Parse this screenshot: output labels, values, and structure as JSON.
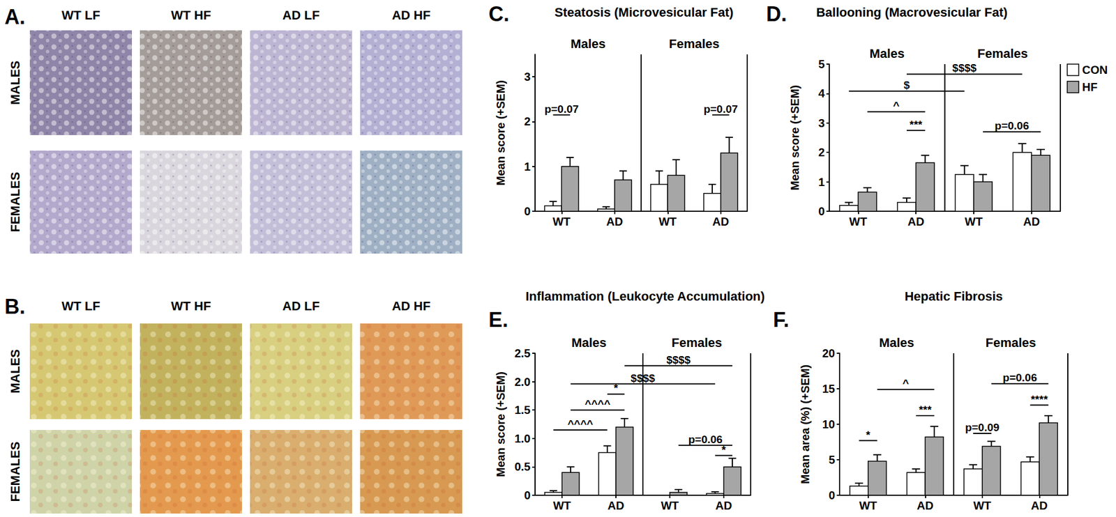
{
  "images": [
    {
      "panel": "A.",
      "columns": [
        "WT LF",
        "WT HF",
        "AD LF",
        "AD HF"
      ],
      "rows": [
        "MALES",
        "FEMALES"
      ]
    },
    {
      "panel": "B.",
      "columns": [
        "WT LF",
        "WT HF",
        "AD LF",
        "AD HF"
      ],
      "rows": [
        "MALES",
        "FEMALES"
      ]
    }
  ],
  "chart_data": [
    {
      "type": "bar",
      "panel": "C.",
      "title": "Steatosis (Microvesicular Fat)",
      "ylabel": "Mean score (+SEM)",
      "groups": [
        "Males",
        "Females"
      ],
      "categories": [
        "WT",
        "AD",
        "WT",
        "AD"
      ],
      "series": [
        {
          "name": "CON",
          "color": "#ffffff",
          "values": [
            0.12,
            0.05,
            0.6,
            0.4
          ],
          "errors": [
            0.1,
            0.05,
            0.3,
            0.2
          ]
        },
        {
          "name": "HF",
          "color": "#a6a6a6",
          "values": [
            1.0,
            0.7,
            0.8,
            1.3
          ],
          "errors": [
            0.2,
            0.2,
            0.35,
            0.35
          ]
        }
      ],
      "ylim": [
        0,
        3.5
      ],
      "yticks": [
        0,
        1,
        2,
        3
      ],
      "annotations": [
        {
          "label": "p=0.07",
          "from": [
            0,
            0
          ],
          "to": [
            0,
            1
          ],
          "y": 2.15
        },
        {
          "label": "p=0.07",
          "from": [
            3,
            0
          ],
          "to": [
            3,
            1
          ],
          "y": 2.15
        }
      ]
    },
    {
      "type": "bar",
      "panel": "D.",
      "title": "Ballooning (Macrovesicular Fat)",
      "ylabel": "Mean score (+SEM)",
      "groups": [
        "Males",
        "Females"
      ],
      "categories": [
        "WT",
        "AD",
        "WT",
        "AD"
      ],
      "series": [
        {
          "name": "CON",
          "color": "#ffffff",
          "values": [
            0.2,
            0.3,
            1.25,
            2.0
          ],
          "errors": [
            0.1,
            0.15,
            0.3,
            0.3
          ]
        },
        {
          "name": "HF",
          "color": "#a6a6a6",
          "values": [
            0.65,
            1.65,
            1.0,
            1.9
          ],
          "errors": [
            0.15,
            0.25,
            0.25,
            0.2
          ]
        }
      ],
      "ylim": [
        0,
        5
      ],
      "yticks": [
        0,
        1,
        2,
        3,
        4,
        5
      ],
      "legend": "right",
      "annotations": [
        {
          "label": "$$$$",
          "from": [
            1,
            0
          ],
          "to": [
            3,
            0
          ],
          "y": 4.66
        },
        {
          "label": "$",
          "from": [
            0,
            0
          ],
          "to": [
            2,
            0
          ],
          "y": 4.08
        },
        {
          "label": "^",
          "from": [
            0,
            1
          ],
          "to": [
            1,
            1
          ],
          "y": 3.38
        },
        {
          "label": "***",
          "from": [
            1,
            0
          ],
          "to": [
            1,
            1
          ],
          "y": 2.75
        },
        {
          "label": "p=0.06",
          "from": [
            2,
            1
          ],
          "to": [
            3,
            1
          ],
          "y": 2.7
        }
      ]
    },
    {
      "type": "bar",
      "panel": "E.",
      "title": "Inflammation (Leukocyte Accumulation)",
      "ylabel": "Mean score (+SEM)",
      "groups": [
        "Males",
        "Females"
      ],
      "categories": [
        "WT",
        "AD",
        "WT",
        "AD"
      ],
      "series": [
        {
          "name": "CON",
          "color": "#ffffff",
          "values": [
            0.05,
            0.75,
            0.0,
            0.03
          ],
          "errors": [
            0.03,
            0.12,
            0.0,
            0.03
          ]
        },
        {
          "name": "HF",
          "color": "#a6a6a6",
          "values": [
            0.4,
            1.2,
            0.05,
            0.5
          ],
          "errors": [
            0.1,
            0.15,
            0.05,
            0.15
          ]
        }
      ],
      "ylim": [
        0,
        2.5
      ],
      "yticks": [
        0,
        0.5,
        {
          "value": 1,
          "label": "1.0"
        },
        1.5,
        {
          "value": 2,
          "label": "2.0"
        },
        2.5
      ],
      "annotations": [
        {
          "label": "$$$$",
          "from": [
            1,
            1
          ],
          "to": [
            3,
            1
          ],
          "y": 2.28
        },
        {
          "label": "$$$$",
          "from": [
            0,
            1
          ],
          "to": [
            3,
            0
          ],
          "y": 1.96
        },
        {
          "label": "*",
          "from": [
            1,
            0
          ],
          "to": [
            1,
            1
          ],
          "y": 1.78
        },
        {
          "label": "^^^^",
          "from": [
            0,
            1
          ],
          "to": [
            1,
            1
          ],
          "y": 1.5
        },
        {
          "label": "^^^^",
          "from": [
            0,
            0
          ],
          "to": [
            1,
            0
          ],
          "y": 1.15
        },
        {
          "label": "p=0.06",
          "from": [
            2,
            1
          ],
          "to": [
            3,
            1
          ],
          "y": 0.88
        },
        {
          "label": "*",
          "from": [
            3,
            0
          ],
          "to": [
            3,
            1
          ],
          "y": 0.7
        }
      ]
    },
    {
      "type": "bar",
      "panel": "F.",
      "title": "Hepatic Fibrosis",
      "ylabel": "Mean area (%) (+SEM)",
      "groups": [
        "Males",
        "Females"
      ],
      "categories": [
        "WT",
        "AD",
        "WT",
        "AD"
      ],
      "series": [
        {
          "name": "CON",
          "color": "#ffffff",
          "values": [
            1.3,
            3.2,
            3.7,
            4.7
          ],
          "errors": [
            0.4,
            0.5,
            0.6,
            0.7
          ]
        },
        {
          "name": "HF",
          "color": "#a6a6a6",
          "values": [
            4.8,
            8.2,
            6.9,
            10.2
          ],
          "errors": [
            0.9,
            1.5,
            0.7,
            1.0
          ]
        }
      ],
      "ylim": [
        0,
        20
      ],
      "yticks": [
        0,
        5,
        10,
        15,
        20
      ],
      "annotations": [
        {
          "label": "*",
          "from": [
            0,
            0
          ],
          "to": [
            0,
            1
          ],
          "y": 7.7
        },
        {
          "label": "^",
          "from": [
            0,
            1
          ],
          "to": [
            1,
            1
          ],
          "y": 14.9
        },
        {
          "label": "***",
          "from": [
            1,
            0
          ],
          "to": [
            1,
            1
          ],
          "y": 11.2
        },
        {
          "label": "p=0.09",
          "from": [
            2,
            0
          ],
          "to": [
            2,
            1
          ],
          "y": 8.7
        },
        {
          "label": "p=0.06",
          "from": [
            2,
            1
          ],
          "to": [
            3,
            1
          ],
          "y": 15.7
        },
        {
          "label": "****",
          "from": [
            3,
            0
          ],
          "to": [
            3,
            1
          ],
          "y": 12.7
        }
      ]
    }
  ]
}
